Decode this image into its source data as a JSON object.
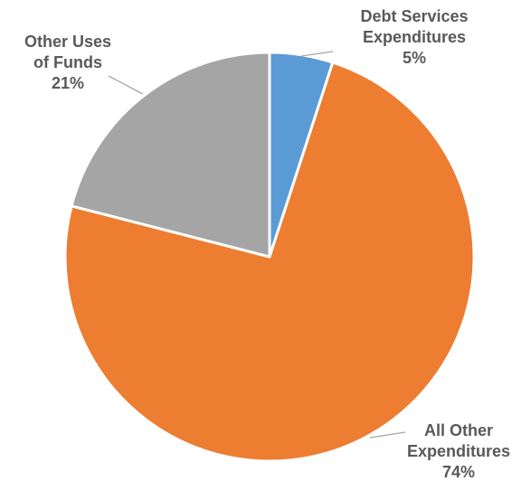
{
  "chart_data": {
    "type": "pie",
    "title": "",
    "start_angle_deg": 0,
    "direction": "clockwise",
    "slices": [
      {
        "name": "Debt Services Expenditures",
        "label_lines": [
          "Debt Services",
          "Expenditures",
          "5%"
        ],
        "value": 5,
        "display": "5%",
        "color": "#5b9bd5"
      },
      {
        "name": "All Other Expenditures",
        "label_lines": [
          "All Other",
          "Expenditures",
          "74%"
        ],
        "value": 74,
        "display": "74%",
        "color": "#ed7d31"
      },
      {
        "name": "Other Uses of Funds",
        "label_lines": [
          "Other Uses",
          "of Funds",
          "21%"
        ],
        "value": 21,
        "display": "21%",
        "color": "#a5a5a5"
      }
    ],
    "legend": "none",
    "label_color": "#595959",
    "leader_line_color": "#a6a6a6"
  }
}
